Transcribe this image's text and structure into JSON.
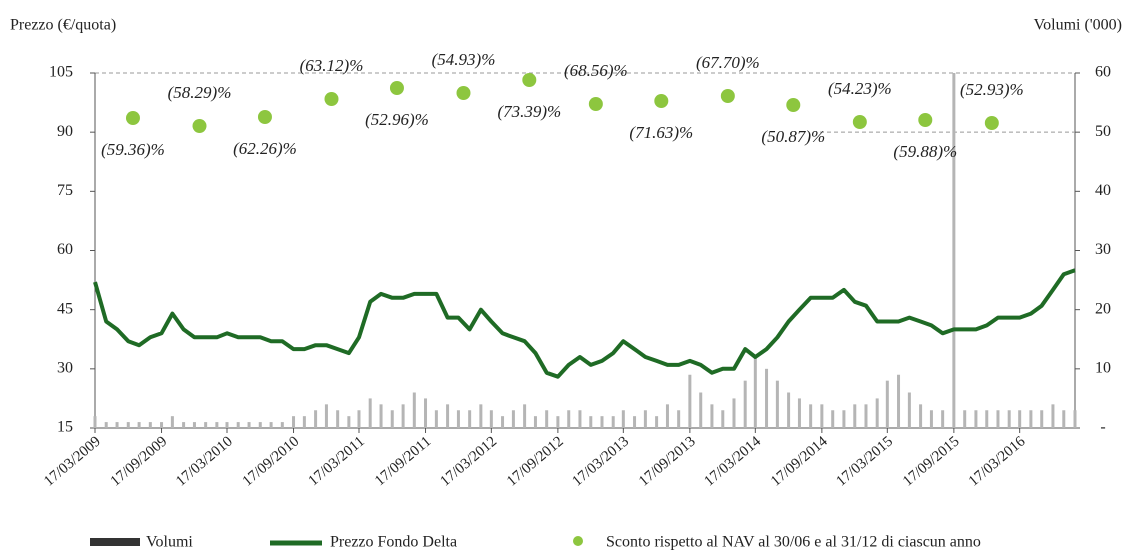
{
  "chart_data": {
    "type": "line",
    "ylabel": "Prezzo (€/quota)",
    "y2label": "Volumi ('000)",
    "ylim": [
      15,
      105
    ],
    "yticks": [
      15,
      30,
      45,
      60,
      75,
      90,
      105
    ],
    "y2lim": [
      0,
      60
    ],
    "y2ticks": [
      {
        "value": 0,
        "label": "-"
      },
      10,
      20,
      30,
      40,
      50,
      60
    ],
    "xlim": [
      "17/03/2009",
      "17/08/2016"
    ],
    "xticks": [
      "17/03/2009",
      "17/09/2009",
      "17/03/2010",
      "17/09/2010",
      "17/03/2011",
      "17/09/2011",
      "17/03/2012",
      "17/09/2012",
      "17/03/2013",
      "17/09/2013",
      "17/03/2014",
      "17/09/2014",
      "17/03/2015",
      "17/09/2015",
      "17/03/2016"
    ],
    "x": [
      "17/03/2009",
      "17/04/2009",
      "17/05/2009",
      "17/06/2009",
      "17/07/2009",
      "17/08/2009",
      "17/09/2009",
      "17/10/2009",
      "17/11/2009",
      "17/12/2009",
      "17/01/2010",
      "17/02/2010",
      "17/03/2010",
      "17/04/2010",
      "17/05/2010",
      "17/06/2010",
      "17/07/2010",
      "17/08/2010",
      "17/09/2010",
      "17/10/2010",
      "17/11/2010",
      "17/12/2010",
      "17/01/2011",
      "17/02/2011",
      "17/03/2011",
      "17/04/2011",
      "17/05/2011",
      "17/06/2011",
      "17/07/2011",
      "17/08/2011",
      "17/09/2011",
      "17/10/2011",
      "17/11/2011",
      "17/12/2011",
      "17/01/2012",
      "17/02/2012",
      "17/03/2012",
      "17/04/2012",
      "17/05/2012",
      "17/06/2012",
      "17/07/2012",
      "17/08/2012",
      "17/09/2012",
      "17/10/2012",
      "17/11/2012",
      "17/12/2012",
      "17/01/2013",
      "17/02/2013",
      "17/03/2013",
      "17/04/2013",
      "17/05/2013",
      "17/06/2013",
      "17/07/2013",
      "17/08/2013",
      "17/09/2013",
      "17/10/2013",
      "17/11/2013",
      "17/12/2013",
      "17/01/2014",
      "17/02/2014",
      "17/03/2014",
      "17/04/2014",
      "17/05/2014",
      "17/06/2014",
      "17/07/2014",
      "17/08/2014",
      "17/09/2014",
      "17/10/2014",
      "17/11/2014",
      "17/12/2014",
      "17/01/2015",
      "17/02/2015",
      "17/03/2015",
      "17/04/2015",
      "17/05/2015",
      "17/06/2015",
      "17/07/2015",
      "17/08/2015",
      "17/09/2015",
      "17/10/2015",
      "17/11/2015",
      "17/12/2015",
      "17/01/2016",
      "17/02/2016",
      "17/03/2016",
      "17/04/2016",
      "17/05/2016",
      "17/06/2016",
      "17/07/2016",
      "17/08/2016"
    ],
    "series": [
      {
        "name": "Volumi",
        "color": "#b5b5b5",
        "legend_color": "#333333",
        "axis": "y2",
        "kind": "bar",
        "values": [
          2,
          1,
          1,
          1,
          1,
          1,
          1,
          2,
          1,
          1,
          1,
          1,
          1,
          1,
          1,
          1,
          1,
          1,
          2,
          2,
          3,
          4,
          3,
          2,
          3,
          5,
          4,
          3,
          4,
          6,
          5,
          3,
          4,
          3,
          3,
          4,
          3,
          2,
          3,
          4,
          2,
          3,
          2,
          3,
          3,
          2,
          2,
          2,
          3,
          2,
          3,
          2,
          4,
          3,
          9,
          6,
          4,
          3,
          5,
          8,
          12,
          10,
          8,
          6,
          5,
          4,
          4,
          3,
          3,
          4,
          4,
          5,
          8,
          9,
          6,
          4,
          3,
          3,
          60,
          3,
          3,
          3,
          3,
          3,
          3,
          3,
          3,
          4,
          3,
          3
        ]
      },
      {
        "name": "Prezzo Fondo Delta",
        "color": "#1f6b25",
        "kind": "line",
        "values": [
          52,
          42,
          40,
          37,
          36,
          38,
          39,
          44,
          40,
          38,
          38,
          38,
          39,
          38,
          38,
          38,
          37,
          37,
          35,
          35,
          36,
          36,
          35,
          34,
          38,
          47,
          49,
          48,
          48,
          49,
          49,
          49,
          43,
          43,
          40,
          45,
          42,
          39,
          38,
          37,
          34,
          29,
          28,
          31,
          33,
          31,
          32,
          34,
          37,
          35,
          33,
          32,
          31,
          31,
          32,
          31,
          29,
          30,
          30,
          35,
          33,
          35,
          38,
          42,
          45,
          48,
          48,
          48,
          50,
          47,
          46,
          42,
          42,
          42,
          43,
          42,
          41,
          39,
          40,
          40,
          40,
          41,
          43,
          43,
          43,
          44,
          46,
          50,
          54,
          55
        ]
      }
    ],
    "discount": {
      "name": "Sconto rispetto al NAV al 30/06 e al 31/12 di ciascun anno",
      "color": "#8dc63f",
      "x": [
        "30/06/2009",
        "31/12/2009",
        "30/06/2010",
        "31/12/2010",
        "30/06/2011",
        "31/12/2011",
        "30/06/2012",
        "31/12/2012",
        "30/06/2013",
        "31/12/2013",
        "30/06/2014",
        "31/12/2014",
        "30/06/2015",
        "31/12/2015"
      ],
      "values": [
        -59.36,
        -58.29,
        -62.26,
        -63.12,
        -52.96,
        -54.93,
        -73.39,
        -68.56,
        -71.63,
        -67.7,
        -50.87,
        -54.23,
        -59.88,
        -52.93
      ],
      "value_labels": [
        "(59.36)%",
        "(58.29)%",
        "(62.26)%",
        "(63.12)%",
        "(52.96)%",
        "(54.93)%",
        "(73.39)%",
        "(68.56)%",
        "(71.63)%",
        "(67.70)%",
        "(50.87)%",
        "(54.23)%",
        "(59.88)%",
        "(52.93)%"
      ]
    }
  }
}
